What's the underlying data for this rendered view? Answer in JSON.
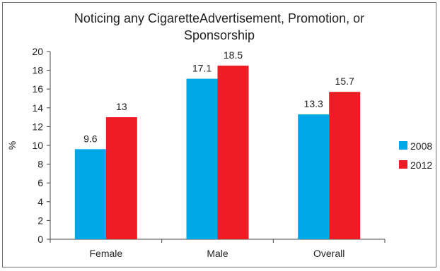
{
  "chart_data": {
    "type": "bar",
    "title": "Noticing any CigaretteAdvertisement, Promotion, or Sponsorship",
    "xlabel": "",
    "ylabel": "%",
    "ylim": [
      0,
      20
    ],
    "ytick_step": 2,
    "categories": [
      "Female",
      "Male",
      "Overall"
    ],
    "series": [
      {
        "name": "2008",
        "values": [
          9.6,
          17.1,
          13.3
        ],
        "labels": [
          "9.6",
          "17.1",
          "13.3"
        ],
        "color": "#00a8e8"
      },
      {
        "name": "2012",
        "values": [
          13,
          18.5,
          15.7
        ],
        "labels": [
          "13",
          "18.5",
          "15.7"
        ],
        "color": "#ee1c25"
      }
    ],
    "legend_position": "right",
    "grid": false
  }
}
